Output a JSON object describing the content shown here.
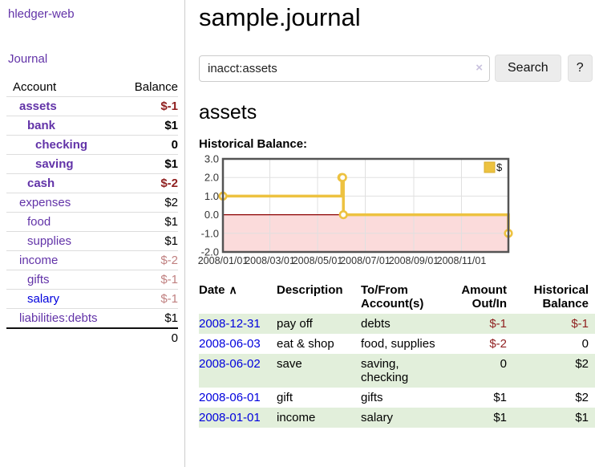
{
  "app": {
    "brand": "hledger-web",
    "nav": {
      "journal": "Journal"
    }
  },
  "colors": {
    "purple": "#6233a8",
    "blue": "#0000dd",
    "negative_strong": "#8f1f1f",
    "negative_soft": "#c08080",
    "row_green": "#e2efdb",
    "series_gold": "#edc240",
    "zero_line_red": "#8b0000",
    "negative_area_pink": "#fbdbdb",
    "grid": "#e0e0e0",
    "chart_border": "#545454"
  },
  "sidebar": {
    "headers": {
      "account": "Account",
      "balance": "Balance"
    },
    "accounts": [
      {
        "name": "assets",
        "depth": 0,
        "bold": true,
        "balance": "$-1",
        "balance_style": "neg-strong",
        "link_style": "purple"
      },
      {
        "name": "bank",
        "depth": 1,
        "bold": true,
        "balance": "$1",
        "balance_style": "pos",
        "link_style": "purple"
      },
      {
        "name": "checking",
        "depth": 2,
        "bold": true,
        "balance": "0",
        "balance_style": "pos",
        "link_style": "purple"
      },
      {
        "name": "saving",
        "depth": 2,
        "bold": true,
        "balance": "$1",
        "balance_style": "pos",
        "link_style": "purple"
      },
      {
        "name": "cash",
        "depth": 1,
        "bold": true,
        "balance": "$-2",
        "balance_style": "neg-strong",
        "link_style": "purple"
      },
      {
        "name": "expenses",
        "depth": 0,
        "bold": false,
        "balance": "$2",
        "balance_style": "pos",
        "link_style": "purple"
      },
      {
        "name": "food",
        "depth": 1,
        "bold": false,
        "balance": "$1",
        "balance_style": "pos",
        "link_style": "purple"
      },
      {
        "name": "supplies",
        "depth": 1,
        "bold": false,
        "balance": "$1",
        "balance_style": "pos",
        "link_style": "purple"
      },
      {
        "name": "income",
        "depth": 0,
        "bold": false,
        "balance": "$-2",
        "balance_style": "neg-soft",
        "link_style": "purple"
      },
      {
        "name": "gifts",
        "depth": 1,
        "bold": false,
        "balance": "$-1",
        "balance_style": "neg-soft",
        "link_style": "purple"
      },
      {
        "name": "salary",
        "depth": 1,
        "bold": false,
        "balance": "$-1",
        "balance_style": "neg-soft",
        "link_style": "blue"
      },
      {
        "name": "liabilities:debts",
        "depth": 0,
        "bold": false,
        "balance": "$1",
        "balance_style": "pos",
        "link_style": "purple"
      }
    ],
    "total": "0"
  },
  "main": {
    "title": "sample.journal",
    "search": {
      "value": "inacct:assets",
      "clear_icon": "×",
      "search_button": "Search",
      "help_button": "?"
    },
    "account_title": "assets",
    "chart_title": "Historical Balance:"
  },
  "chart_data": {
    "type": "line",
    "step": true,
    "title": "Historical Balance",
    "series": [
      {
        "name": "$",
        "color": "#edc240",
        "points": [
          [
            "2008-01-01",
            1
          ],
          [
            "2008-06-01",
            2
          ],
          [
            "2008-06-02",
            2
          ],
          [
            "2008-06-03",
            0
          ],
          [
            "2008-12-31",
            -1
          ]
        ]
      }
    ],
    "x_ticks": [
      "2008/01/01",
      "2008/03/01",
      "2008/05/01",
      "2008/07/01",
      "2008/09/01",
      "2008/11/01"
    ],
    "y_ticks": [
      "3.0",
      "2.0",
      "1.0",
      "0.0",
      "-1.0",
      "-2.0"
    ],
    "ylim": [
      -2,
      3
    ],
    "xlim": [
      "2008-01-01",
      "2008-12-31"
    ],
    "legend": {
      "label": "$",
      "position": "top-right"
    },
    "grid": true,
    "negative_region_shaded": true
  },
  "register": {
    "headers": {
      "date": "Date",
      "sort_icon": "∧",
      "description": "Description",
      "account": "To/From Account(s)",
      "amount": "Amount Out/In",
      "balance": "Historical Balance"
    },
    "rows": [
      {
        "date": "2008-12-31",
        "description": "pay off",
        "accounts": "debts",
        "amount": "$-1",
        "amount_neg": true,
        "balance": "$-1",
        "balance_neg": true,
        "shaded": true
      },
      {
        "date": "2008-06-03",
        "description": "eat & shop",
        "accounts": "food, supplies",
        "amount": "$-2",
        "amount_neg": true,
        "balance": "0",
        "balance_neg": false,
        "shaded": false
      },
      {
        "date": "2008-06-02",
        "description": "save",
        "accounts": "saving, checking",
        "amount": "0",
        "amount_neg": false,
        "balance": "$2",
        "balance_neg": false,
        "shaded": true
      },
      {
        "date": "2008-06-01",
        "description": "gift",
        "accounts": "gifts",
        "amount": "$1",
        "amount_neg": false,
        "balance": "$2",
        "balance_neg": false,
        "shaded": false
      },
      {
        "date": "2008-01-01",
        "description": "income",
        "accounts": "salary",
        "amount": "$1",
        "amount_neg": false,
        "balance": "$1",
        "balance_neg": false,
        "shaded": true
      }
    ]
  }
}
